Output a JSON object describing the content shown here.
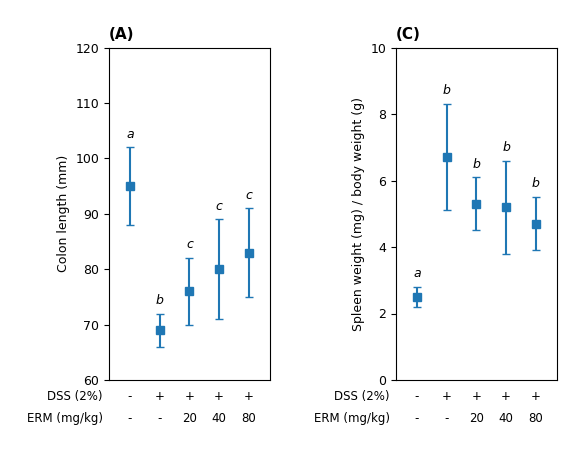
{
  "chart_data": [
    {
      "type": "errorbar",
      "title": "(A)",
      "x": [
        1,
        2,
        3,
        4,
        5
      ],
      "values": [
        95,
        69,
        76,
        80,
        83
      ],
      "errors": [
        7,
        3,
        6,
        9,
        8
      ],
      "annotations": [
        "a",
        "b",
        "c",
        "c",
        "c"
      ],
      "ylabel": "Colon length (mm)",
      "xlim": [
        0.3,
        5.7
      ],
      "xticks": [],
      "ylim": [
        60,
        120
      ],
      "yticks": [
        60,
        70,
        80,
        90,
        100,
        110,
        120
      ],
      "tick_labels": "y",
      "marker": "square",
      "rows": [
        {
          "name": "DSS (2%)",
          "labels": [
            "-",
            "+",
            "+",
            "+",
            "+"
          ]
        },
        {
          "name": "ERM (mg/kg)",
          "labels": [
            "-",
            "-",
            "20",
            "40",
            "80"
          ]
        }
      ]
    },
    {
      "type": "errorbar",
      "title": "(C)",
      "x": [
        1,
        2,
        3,
        4,
        5
      ],
      "values": [
        2.5,
        6.7,
        5.3,
        5.2,
        4.7
      ],
      "errors": [
        0.3,
        1.6,
        0.8,
        1.4,
        0.8
      ],
      "annotations": [
        "a",
        "b",
        "b",
        "b",
        "b"
      ],
      "ylabel": "Spleen weight (mg) / body weight (g)",
      "xlim": [
        0.3,
        5.7
      ],
      "xticks": [],
      "ylim": [
        0,
        10
      ],
      "yticks": [
        0,
        2,
        4,
        6,
        8,
        10
      ],
      "tick_labels": "y",
      "marker": "square",
      "rows": [
        {
          "name": "DSS (2%)",
          "labels": [
            "-",
            "+",
            "+",
            "+",
            "+"
          ]
        },
        {
          "name": "ERM (mg/kg)",
          "labels": [
            "-",
            "-",
            "20",
            "40",
            "80"
          ]
        }
      ]
    }
  ]
}
